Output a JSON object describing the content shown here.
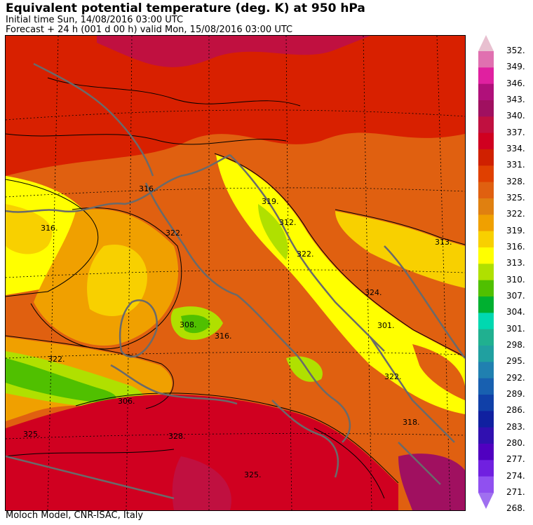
{
  "header": {
    "title": "Equivalent potential temperature (deg. K) at 950 hPa",
    "initial_time": "Initial time  Sun, 14/08/2016  03:00 UTC",
    "forecast": "Forecast  +  24 h  (001 d 00 h)  valid Mon, 15/08/2016 03:00 UTC"
  },
  "footer": {
    "credit": "Moloch Model, CNR-ISAC, Italy"
  },
  "colorbar": {
    "ticks": [
      "352.",
      "349.",
      "346.",
      "343.",
      "340.",
      "337.",
      "334.",
      "331.",
      "328.",
      "325.",
      "322.",
      "319.",
      "316.",
      "313.",
      "310.",
      "307.",
      "304.",
      "301.",
      "298.",
      "295.",
      "292.",
      "289.",
      "286.",
      "283.",
      "280.",
      "277.",
      "274.",
      "271.",
      "268."
    ],
    "colors": [
      "#e8c0d0",
      "#e070b0",
      "#e020a0",
      "#b0107a",
      "#a01060",
      "#c01040",
      "#d00020",
      "#d02000",
      "#e04000",
      "#e06010",
      "#e08010",
      "#f0a000",
      "#f8d000",
      "#ffff00",
      "#b0e000",
      "#50c000",
      "#00b030",
      "#00d8b0",
      "#20b090",
      "#20a0a0",
      "#2080b0",
      "#1860b0",
      "#1040a8",
      "#1020a0",
      "#3010b0",
      "#5000c0",
      "#7020e0",
      "#9050f0",
      "#a070f0"
    ]
  },
  "map": {
    "contour_labels": [
      "316.",
      "316.",
      "319.",
      "312.",
      "322.",
      "313.",
      "324.",
      "322.",
      "308.",
      "316.",
      "301.",
      "306.",
      "322.",
      "325.",
      "328.",
      "325.",
      "322.",
      "318."
    ]
  }
}
